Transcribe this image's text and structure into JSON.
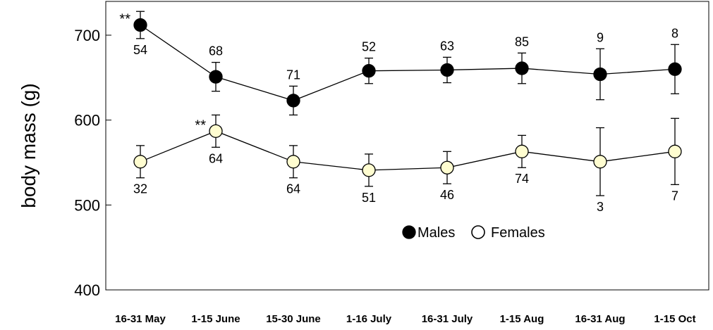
{
  "chart_data": {
    "type": "line",
    "title": "",
    "xlabel": "",
    "ylabel": "body mass (g)",
    "categories": [
      "16-31 May",
      "1-15 June",
      "15-30 June",
      "1-16 July",
      "16-31 July",
      "1-15 Aug",
      "16-31 Aug",
      "1-15 Oct"
    ],
    "ylim": [
      400,
      700
    ],
    "yticks": [
      400,
      500,
      600,
      700
    ],
    "grid": false,
    "legend_position": "lower-center",
    "series": [
      {
        "name": "Males",
        "marker_color": "#000000",
        "values": [
          712,
          651,
          623,
          658,
          659,
          661,
          654,
          660
        ],
        "error": [
          16,
          17,
          17,
          15,
          15,
          18,
          30,
          29
        ],
        "n": [
          "54",
          "68",
          "71",
          "52",
          "63",
          "85",
          "9",
          "8"
        ],
        "n_position": [
          "below",
          "above",
          "above",
          "above",
          "above",
          "above",
          "above",
          "above"
        ],
        "significance": [
          "**",
          "",
          "",
          "",
          "",
          "",
          "",
          ""
        ]
      },
      {
        "name": "Females",
        "marker_color": "#FFFDD0",
        "values": [
          551,
          587,
          551,
          541,
          544,
          563,
          551,
          563
        ],
        "error": [
          19,
          19,
          19,
          19,
          19,
          19,
          40,
          39
        ],
        "n": [
          "32",
          "64",
          "64",
          "51",
          "46",
          "74",
          "3",
          "7"
        ],
        "n_position": [
          "below",
          "below",
          "below",
          "below",
          "below",
          "below",
          "below",
          "below"
        ],
        "significance": [
          "",
          "**",
          "",
          "",
          "",
          "",
          "",
          ""
        ]
      }
    ]
  }
}
